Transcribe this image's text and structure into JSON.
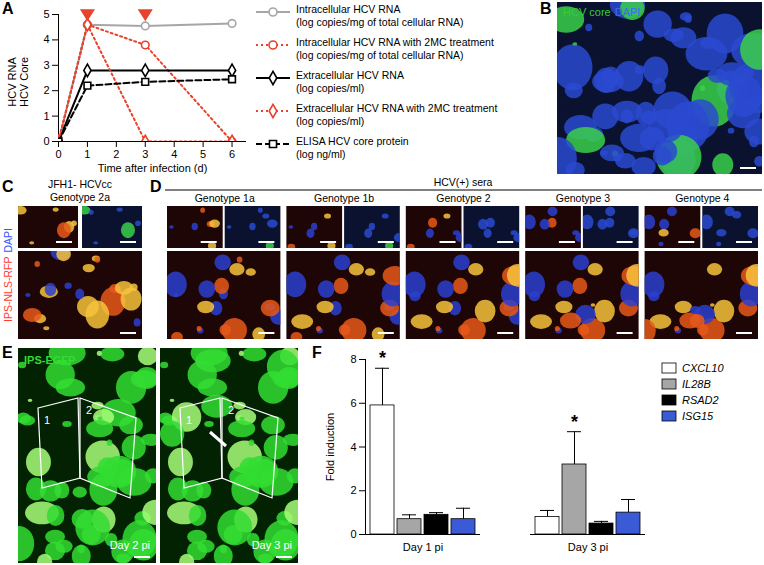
{
  "chart_data": [
    {
      "panel": "A",
      "type": "line",
      "x": [
        0,
        1,
        3,
        6
      ],
      "xlim": [
        0,
        6.5
      ],
      "xticks": [
        0,
        1,
        2,
        3,
        4,
        5,
        6
      ],
      "ylim": [
        0,
        5
      ],
      "yticks": [
        0,
        1,
        2,
        3,
        4,
        5
      ],
      "x_label": "Time after infection (d)",
      "y_label": [
        "HCV RNA",
        "HCV Core"
      ],
      "treatment_days": [
        1,
        3
      ],
      "series": [
        {
          "name": "Intracellular HCV RNA (log copies/mg of total cellular RNA)",
          "color": "#a6a6a6",
          "line_style": "solid",
          "marker": "circle",
          "values": [
            0,
            4.6,
            4.55,
            4.65
          ]
        },
        {
          "name": "Intracellular HCV RNA with 2MC treatment (log copies/mg of total cellular RNA)",
          "color": "#e8412c",
          "line_style": "dotted",
          "marker": "circle",
          "values": [
            0,
            4.6,
            3.8,
            0
          ]
        },
        {
          "name": "Extracellular HCV RNA (log copies/ml)",
          "color": "#000000",
          "line_style": "solid",
          "marker": "diamond",
          "values": [
            0,
            2.8,
            2.8,
            2.8
          ]
        },
        {
          "name": "Extracellular HCV RNA with 2MC treatment (log copies/ml)",
          "color": "#e8412c",
          "line_style": "dotted",
          "marker": "diamond",
          "values": [
            0,
            4.6,
            0,
            0
          ]
        },
        {
          "name": "ELISA HCV core protein (log ng/ml)",
          "color": "#000000",
          "line_style": "dashed",
          "marker": "square",
          "values": [
            0,
            2.2,
            2.35,
            2.45
          ]
        }
      ]
    },
    {
      "panel": "F",
      "type": "bar",
      "categories": [
        "Day 1 pi",
        "Day 3 pi"
      ],
      "ylim": [
        0,
        8
      ],
      "yticks": [
        0,
        2,
        4,
        6,
        8
      ],
      "y_label": "Fold induction",
      "legend": "upper right",
      "series": [
        {
          "name": "CXCL10",
          "color": "#ffffff",
          "values": [
            5.9,
            0.8
          ],
          "errors": [
            1.7,
            0.3
          ]
        },
        {
          "name": "IL28B",
          "color": "#a6a6a6",
          "values": [
            0.7,
            3.2
          ],
          "errors": [
            0.2,
            1.5
          ]
        },
        {
          "name": "RSAD2",
          "color": "#000000",
          "values": [
            0.9,
            0.5
          ],
          "errors": [
            0.1,
            0.1
          ]
        },
        {
          "name": "ISG15",
          "color": "#3b5bd6",
          "values": [
            0.7,
            1.0
          ],
          "errors": [
            0.5,
            0.6
          ]
        }
      ],
      "annotations": [
        {
          "category": "Day 1 pi",
          "series": "CXCL10",
          "text": "*"
        },
        {
          "category": "Day 3 pi",
          "series": "IL28B",
          "text": "*"
        }
      ]
    }
  ],
  "image_panels": {
    "B": {
      "panel": "B",
      "labels": [
        {
          "text": "HCV core",
          "color": "#33cc33"
        },
        {
          "text": "DAPI",
          "color": "#4466ff"
        }
      ]
    },
    "C": {
      "panel": "C",
      "title": "JFH1- HCVcc",
      "subtitle": "Genotype 2a",
      "side_label": [
        {
          "text": "IPS-NLS-RFP",
          "color": "#ff3b30"
        },
        {
          "text": "DAPI",
          "color": "#3355ff"
        }
      ]
    },
    "D": {
      "panel": "D",
      "title": "HCV(+) sera",
      "columns": [
        "Genotype 1a",
        "Genotype 1b",
        "Genotype 2",
        "Genotype 3",
        "Genotype 4"
      ]
    },
    "E": {
      "panel": "E",
      "label": "IPS-EGFP",
      "label_color": "#33dd33",
      "images": [
        {
          "caption": "Day 2 pi",
          "regions": [
            "1",
            "2"
          ]
        },
        {
          "caption": "Day 3 pi",
          "regions": [
            "1",
            "2"
          ]
        }
      ]
    }
  }
}
